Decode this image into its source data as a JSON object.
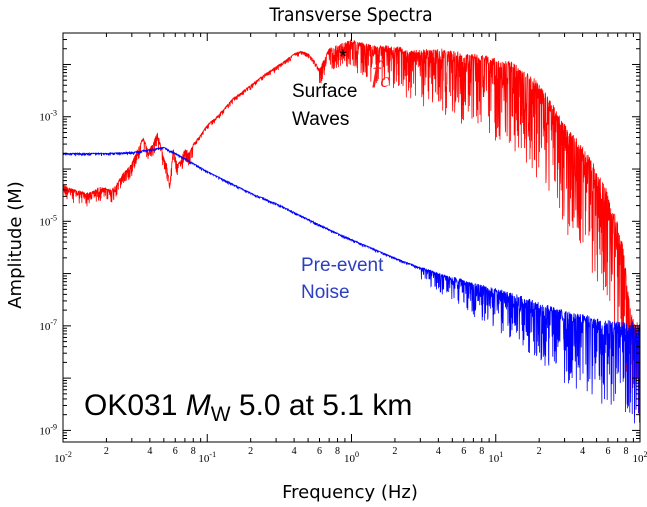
{
  "chart_data": {
    "type": "line",
    "title": "Transverse Spectra",
    "xlabel": "Frequency (Hz)",
    "ylabel": "Amplitude (M)",
    "x_scale": "log",
    "y_scale": "log",
    "xlim": [
      0.01,
      100
    ],
    "ylim": [
      6e-10,
      0.04
    ],
    "x_major_ticks": [
      {
        "value": 0.01,
        "base": "10",
        "exp": "-2"
      },
      {
        "value": 0.1,
        "base": "10",
        "exp": "-1"
      },
      {
        "value": 1,
        "base": "10",
        "exp": "0"
      },
      {
        "value": 10,
        "base": "10",
        "exp": "1"
      },
      {
        "value": 100,
        "base": "10",
        "exp": "2"
      }
    ],
    "x_minor_tick_labels": [
      "2",
      "4",
      "6",
      "8"
    ],
    "y_major_ticks": [
      {
        "value": 1e-09,
        "base": "10",
        "exp": "-9"
      },
      {
        "value": 1e-07,
        "base": "10",
        "exp": "-7"
      },
      {
        "value": 1e-05,
        "base": "10",
        "exp": "-5"
      },
      {
        "value": 0.001,
        "base": "10",
        "exp": "-3"
      }
    ],
    "series": [
      {
        "color": "#ff0000",
        "points": [
          [
            0.01,
            5e-05
          ],
          [
            0.012,
            4e-05
          ],
          [
            0.015,
            3.4e-05
          ],
          [
            0.018,
            4.5e-05
          ],
          [
            0.022,
            4e-05
          ],
          [
            0.026,
            8e-05
          ],
          [
            0.03,
            0.00013
          ],
          [
            0.033,
            0.00025
          ],
          [
            0.036,
            0.0004
          ],
          [
            0.039,
            0.00022
          ],
          [
            0.042,
            0.0003
          ],
          [
            0.045,
            0.0005
          ],
          [
            0.048,
            0.00026
          ],
          [
            0.052,
            0.00013
          ],
          [
            0.055,
            5e-05
          ],
          [
            0.058,
            0.00025
          ],
          [
            0.062,
            0.00012
          ],
          [
            0.066,
            0.00015
          ],
          [
            0.07,
            0.00025
          ],
          [
            0.075,
            0.0002
          ],
          [
            0.08,
            0.0003
          ],
          [
            0.09,
            0.00045
          ],
          [
            0.1,
            0.0007
          ],
          [
            0.12,
            0.0011
          ],
          [
            0.15,
            0.0022
          ],
          [
            0.2,
            0.004
          ],
          [
            0.25,
            0.0065
          ],
          [
            0.3,
            0.009
          ],
          [
            0.35,
            0.012
          ],
          [
            0.4,
            0.016
          ],
          [
            0.45,
            0.018
          ],
          [
            0.5,
            0.016
          ],
          [
            0.55,
            0.012
          ],
          [
            0.6,
            0.008
          ],
          [
            0.65,
            0.013
          ],
          [
            0.7,
            0.02
          ],
          [
            0.8,
            0.023
          ],
          [
            0.9,
            0.026
          ],
          [
            1.0,
            0.029
          ],
          [
            1.2,
            0.025
          ],
          [
            1.5,
            0.022
          ],
          [
            2.0,
            0.022
          ],
          [
            2.5,
            0.017
          ],
          [
            3.0,
            0.018
          ],
          [
            4.0,
            0.019
          ],
          [
            5.0,
            0.017
          ],
          [
            6.0,
            0.015
          ],
          [
            8.0,
            0.014
          ],
          [
            10,
            0.012
          ],
          [
            12,
            0.011
          ],
          [
            15,
            0.008
          ],
          [
            20,
            0.004
          ],
          [
            25,
            0.0015
          ],
          [
            30,
            0.0007
          ],
          [
            35,
            0.0004
          ],
          [
            40,
            0.00023
          ],
          [
            50,
            9e-05
          ],
          [
            60,
            3e-05
          ],
          [
            70,
            9e-06
          ],
          [
            78,
            2e-06
          ],
          [
            83,
            4e-07
          ],
          [
            88,
            1.3e-07
          ],
          [
            95,
            1e-07
          ],
          [
            100,
            1e-07
          ]
        ]
      },
      {
        "color": "#0000ff",
        "points": [
          [
            0.01,
            0.0002
          ],
          [
            0.02,
            0.0002
          ],
          [
            0.03,
            0.00021
          ],
          [
            0.05,
            0.00026
          ],
          [
            0.07,
            0.00016
          ],
          [
            0.1,
            9e-05
          ],
          [
            0.2,
            3.5e-05
          ],
          [
            0.3,
            2.2e-05
          ],
          [
            0.5,
            1.1e-05
          ],
          [
            0.7,
            7e-06
          ],
          [
            1.0,
            4.5e-06
          ],
          [
            2.0,
            2e-06
          ],
          [
            3.0,
            1.3e-06
          ],
          [
            5.0,
            8.5e-07
          ],
          [
            7.0,
            6.5e-07
          ],
          [
            10,
            5e-07
          ],
          [
            15,
            3.5e-07
          ],
          [
            20,
            2.6e-07
          ],
          [
            30,
            1.8e-07
          ],
          [
            50,
            1.3e-07
          ],
          [
            70,
            1.1e-07
          ],
          [
            100,
            1e-07
          ]
        ]
      }
    ],
    "annotations": {
      "asterisk": "*",
      "surface_line1": "Surface",
      "surface_line2": "Waves",
      "fc_letter": "f",
      "fc_subscript": "c",
      "noise_line1": "Pre-event",
      "noise_line2": "Noise",
      "event_prefix": "OK031 ",
      "event_m": "M",
      "event_w": "W",
      "event_suffix": " 5.0 at 5.1 km"
    },
    "colors": {
      "red_series": "#ff0000",
      "blue_series": "#0000ff",
      "fc_label": "#ff1a1a",
      "noise_label": "#2b3fc0"
    },
    "grid": false,
    "legend": "none"
  }
}
